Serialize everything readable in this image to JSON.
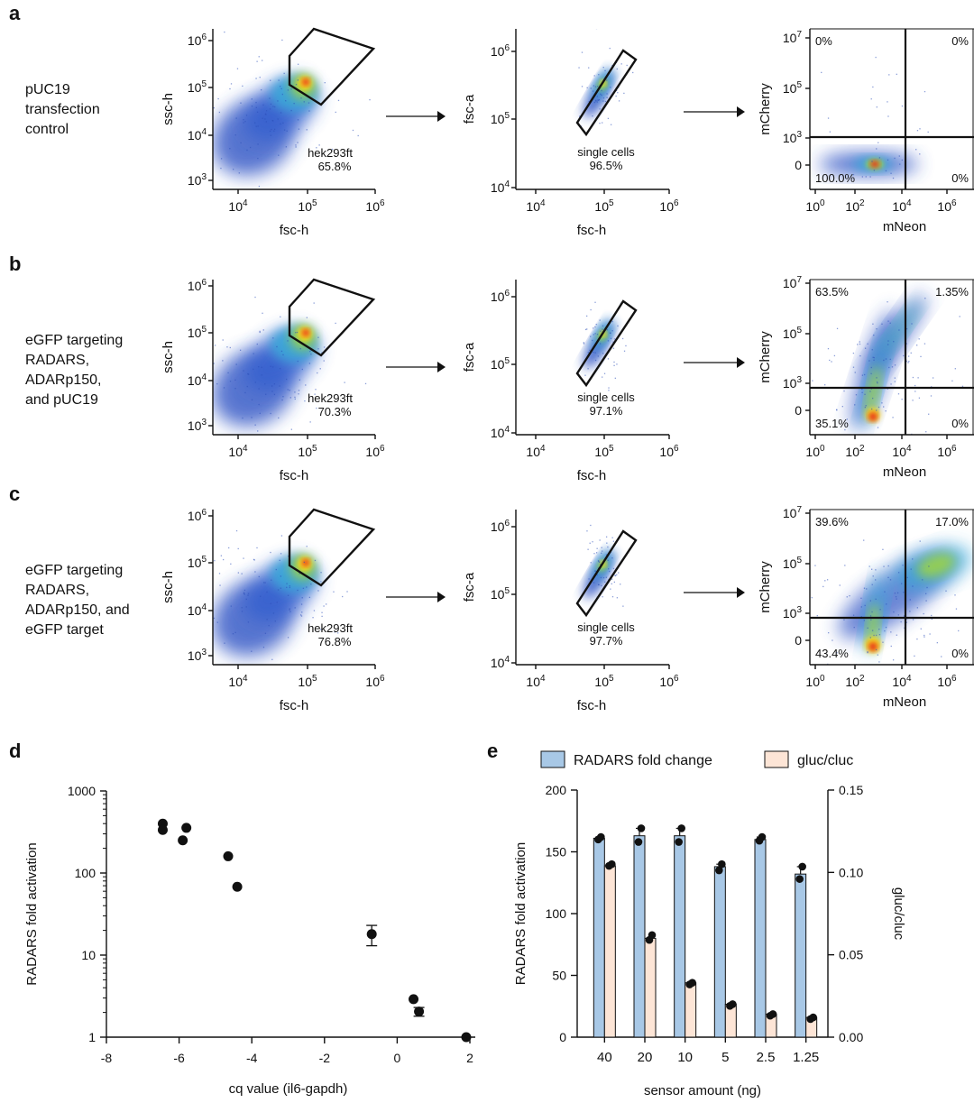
{
  "rows": [
    {
      "letter": "a",
      "condition": [
        "pUC19",
        "transfection",
        "control"
      ],
      "gate1": {
        "name": "hek293ft",
        "pct": "65.8%"
      },
      "gate2": {
        "name": "single cells",
        "pct": "96.5%"
      },
      "quad": {
        "ul": "0%",
        "ur": "0%",
        "ll": "100.0%",
        "lr": "0%"
      },
      "pattern": "control"
    },
    {
      "letter": "b",
      "condition": [
        "eGFP targeting",
        "RADARS,",
        "ADARp150,",
        "and pUC19"
      ],
      "gate1": {
        "name": "hek293ft",
        "pct": "70.3%"
      },
      "gate2": {
        "name": "single cells",
        "pct": "97.1%"
      },
      "quad": {
        "ul": "63.5%",
        "ur": "1.35%",
        "ll": "35.1%",
        "lr": "0%"
      },
      "pattern": "vertical"
    },
    {
      "letter": "c",
      "condition": [
        "eGFP targeting",
        "RADARS,",
        "ADARp150, and",
        "eGFP target"
      ],
      "gate1": {
        "name": "hek293ft",
        "pct": "76.8%"
      },
      "gate2": {
        "name": "single cells",
        "pct": "97.7%"
      },
      "quad": {
        "ul": "39.6%",
        "ur": "17.0%",
        "ll": "43.4%",
        "lr": "0%"
      },
      "pattern": "diagonal"
    }
  ],
  "flow_axes": {
    "p1": {
      "x": "fsc-h",
      "y": "ssc-h",
      "xticks": [
        "10^4",
        "10^5",
        "10^6"
      ],
      "yticks": [
        "10^3",
        "10^4",
        "10^5",
        "10^6"
      ]
    },
    "p2": {
      "x": "fsc-h",
      "y": "fsc-a",
      "xticks": [
        "10^4",
        "10^5",
        "10^6"
      ],
      "yticks": [
        "10^4",
        "10^5",
        "10^6"
      ]
    },
    "p3": {
      "x": "mNeon",
      "y": "mCherry",
      "xticks": [
        "10^0",
        "10^2",
        "10^4",
        "10^6"
      ],
      "yticks": [
        "0",
        "10^3",
        "10^5",
        "10^7"
      ]
    }
  },
  "chart_data": [
    {
      "type": "scatter",
      "panel": "d",
      "xlabel": "cq value (il6-gapdh)",
      "ylabel": "RADARS fold activation",
      "xlim": [
        -8,
        2
      ],
      "ylim": [
        1,
        1000
      ],
      "yscale": "log",
      "xticks": [
        -8,
        -6,
        -4,
        -2,
        0,
        2
      ],
      "yticks": [
        "1",
        "10",
        "100",
        "1000"
      ],
      "points": [
        {
          "x": -6.45,
          "y": 400
        },
        {
          "x": -6.45,
          "y": 335
        },
        {
          "x": -5.9,
          "y": 250
        },
        {
          "x": -5.8,
          "y": 355
        },
        {
          "x": -4.65,
          "y": 160
        },
        {
          "x": -4.4,
          "y": 68
        },
        {
          "x": -0.7,
          "y": 18,
          "err_low": 13,
          "err_high": 23
        },
        {
          "x": 0.45,
          "y": 2.9
        },
        {
          "x": 0.6,
          "y": 2.05,
          "err_low": 1.8,
          "err_high": 2.3
        },
        {
          "x": 1.9,
          "y": 1.0
        }
      ]
    },
    {
      "type": "bar",
      "panel": "e",
      "categories": [
        "40",
        "20",
        "10",
        "5",
        "2.5",
        "1.25"
      ],
      "xlabel": "sensor amount (ng)",
      "series": [
        {
          "name": "RADARS fold change",
          "axis": "left",
          "color": "#a8c8e6",
          "values": [
            161,
            163,
            163,
            138,
            160,
            132
          ],
          "replicates": [
            [
              160,
              162
            ],
            [
              158,
              169
            ],
            [
              158,
              169
            ],
            [
              135,
              140
            ],
            [
              159,
              162
            ],
            [
              128,
              138
            ]
          ]
        },
        {
          "name": "gluc/cluc",
          "axis": "right",
          "color": "#fde5d6",
          "values": [
            0.104,
            0.06,
            0.033,
            0.02,
            0.014,
            0.012
          ],
          "replicates": [
            [
              0.104,
              0.105
            ],
            [
              0.059,
              0.062
            ],
            [
              0.032,
              0.033
            ],
            [
              0.019,
              0.02
            ],
            [
              0.013,
              0.014
            ],
            [
              0.011,
              0.012
            ]
          ]
        }
      ],
      "ylabel": "RADARS fold activation",
      "y2label": "gluc/cluc",
      "ylim": [
        0,
        200
      ],
      "y2lim": [
        0,
        0.15
      ],
      "yticks": [
        "0",
        "50",
        "100",
        "150",
        "200"
      ],
      "y2ticks": [
        "0.00",
        "0.05",
        "0.10",
        "0.15"
      ]
    }
  ],
  "panel_letters": {
    "d": "d",
    "e": "e"
  }
}
